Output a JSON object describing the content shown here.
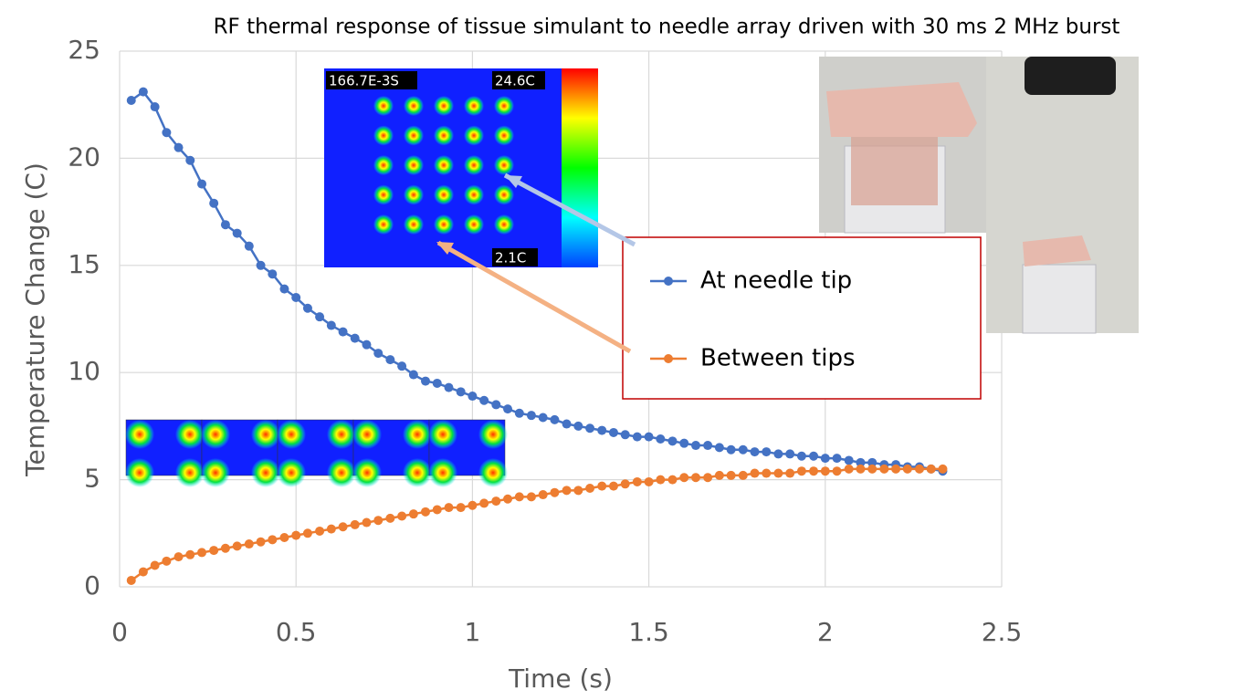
{
  "chart_data": {
    "type": "line",
    "title": "RF thermal response of tissue simulant to needle array driven with 30 ms 2 MHz burst",
    "x_label": "Time (s)",
    "y_label": "Temperature Change (C)",
    "x": [
      0.033,
      0.067,
      0.1,
      0.133,
      0.167,
      0.2,
      0.233,
      0.267,
      0.3,
      0.333,
      0.367,
      0.4,
      0.433,
      0.467,
      0.5,
      0.533,
      0.567,
      0.6,
      0.633,
      0.667,
      0.7,
      0.733,
      0.767,
      0.8,
      0.833,
      0.867,
      0.9,
      0.933,
      0.967,
      1,
      1.033,
      1.067,
      1.1,
      1.133,
      1.167,
      1.2,
      1.233,
      1.267,
      1.3,
      1.333,
      1.367,
      1.4,
      1.433,
      1.467,
      1.5,
      1.533,
      1.567,
      1.6,
      1.633,
      1.667,
      1.7,
      1.733,
      1.767,
      1.8,
      1.833,
      1.867,
      1.9,
      1.933,
      1.967,
      2,
      2.033,
      2.067,
      2.1,
      2.133,
      2.167,
      2.2,
      2.233,
      2.267,
      2.3,
      2.333
    ],
    "series": [
      {
        "name": "At needle tip",
        "color": "#4472c4",
        "values": [
          22.7,
          23.1,
          22.4,
          21.2,
          20.5,
          19.9,
          18.8,
          17.9,
          16.9,
          16.5,
          15.9,
          15.0,
          14.6,
          13.9,
          13.5,
          13.0,
          12.6,
          12.2,
          11.9,
          11.6,
          11.3,
          10.9,
          10.6,
          10.3,
          9.9,
          9.6,
          9.5,
          9.3,
          9.1,
          8.9,
          8.7,
          8.5,
          8.3,
          8.1,
          8.0,
          7.9,
          7.8,
          7.6,
          7.5,
          7.4,
          7.3,
          7.2,
          7.1,
          7.0,
          7.0,
          6.9,
          6.8,
          6.7,
          6.6,
          6.6,
          6.5,
          6.4,
          6.4,
          6.3,
          6.3,
          6.2,
          6.2,
          6.1,
          6.1,
          6.0,
          6.0,
          5.9,
          5.8,
          5.8,
          5.7,
          5.7,
          5.6,
          5.6,
          5.5,
          5.4
        ]
      },
      {
        "name": "Between tips",
        "color": "#ed7d31",
        "values": [
          0.3,
          0.7,
          1.0,
          1.2,
          1.4,
          1.5,
          1.6,
          1.7,
          1.8,
          1.9,
          2.0,
          2.1,
          2.2,
          2.3,
          2.4,
          2.5,
          2.6,
          2.7,
          2.8,
          2.9,
          3.0,
          3.1,
          3.2,
          3.3,
          3.4,
          3.5,
          3.6,
          3.7,
          3.7,
          3.8,
          3.9,
          4.0,
          4.1,
          4.2,
          4.2,
          4.3,
          4.4,
          4.5,
          4.5,
          4.6,
          4.7,
          4.7,
          4.8,
          4.9,
          4.9,
          5.0,
          5.0,
          5.1,
          5.1,
          5.1,
          5.2,
          5.2,
          5.2,
          5.3,
          5.3,
          5.3,
          5.3,
          5.4,
          5.4,
          5.4,
          5.4,
          5.5,
          5.5,
          5.5,
          5.5,
          5.5,
          5.5,
          5.5,
          5.5,
          5.5
        ]
      }
    ],
    "xlim": [
      0,
      2.5
    ],
    "xticks": [
      0,
      0.5,
      1,
      1.5,
      2,
      2.5
    ],
    "ylim": [
      0,
      25
    ],
    "yticks": [
      0,
      5,
      10,
      15,
      20,
      25
    ],
    "grid": true,
    "inset_labels": [
      "166.7E-3S",
      "24.6C",
      "2.1C"
    ]
  }
}
